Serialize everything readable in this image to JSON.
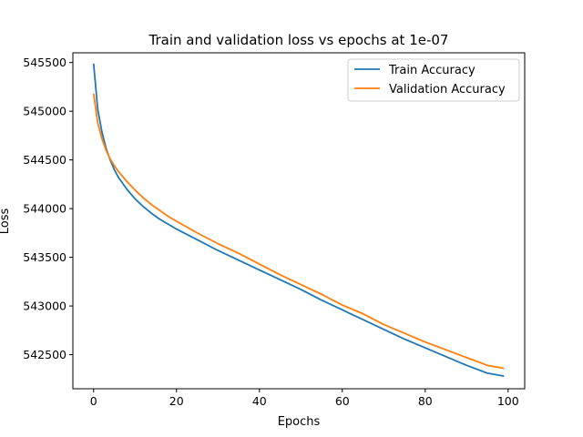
{
  "chart_data": {
    "type": "line",
    "title": "Train and validation loss vs epochs at 1e-07",
    "xlabel": "Epochs",
    "ylabel": "Loss",
    "xlim": [
      -5,
      104
    ],
    "ylim": [
      542150,
      545600
    ],
    "xticks": [
      0,
      20,
      40,
      60,
      80,
      100
    ],
    "yticks": [
      542500,
      543000,
      543500,
      544000,
      544500,
      545000,
      545500
    ],
    "legend_position": "top-right",
    "grid": false,
    "series": [
      {
        "name": "Train Accuracy",
        "color": "#1f77b4",
        "x": [
          0,
          1,
          2,
          3,
          4,
          5,
          6,
          8,
          10,
          12,
          14,
          16,
          18,
          20,
          25,
          30,
          35,
          40,
          45,
          50,
          55,
          60,
          65,
          70,
          75,
          80,
          85,
          90,
          95,
          99
        ],
        "y": [
          545490,
          545020,
          544790,
          544620,
          544500,
          544400,
          544320,
          544200,
          544100,
          544020,
          543950,
          543890,
          543840,
          543790,
          543680,
          543570,
          543470,
          543370,
          543270,
          543170,
          543060,
          542960,
          542860,
          542760,
          542660,
          542570,
          542480,
          542390,
          542310,
          542280
        ]
      },
      {
        "name": "Validation Accuracy",
        "color": "#ff7f0e",
        "x": [
          0,
          1,
          2,
          3,
          4,
          5,
          6,
          8,
          10,
          12,
          14,
          16,
          18,
          20,
          25,
          30,
          35,
          40,
          45,
          50,
          55,
          60,
          65,
          70,
          75,
          80,
          85,
          90,
          95,
          99
        ],
        "y": [
          545180,
          544880,
          544720,
          544600,
          544510,
          544440,
          544380,
          544280,
          544190,
          544110,
          544040,
          543980,
          543920,
          543870,
          543750,
          543640,
          543540,
          543430,
          543320,
          543220,
          543120,
          543010,
          542920,
          542810,
          542720,
          542630,
          542550,
          542470,
          542390,
          542360
        ]
      }
    ]
  }
}
